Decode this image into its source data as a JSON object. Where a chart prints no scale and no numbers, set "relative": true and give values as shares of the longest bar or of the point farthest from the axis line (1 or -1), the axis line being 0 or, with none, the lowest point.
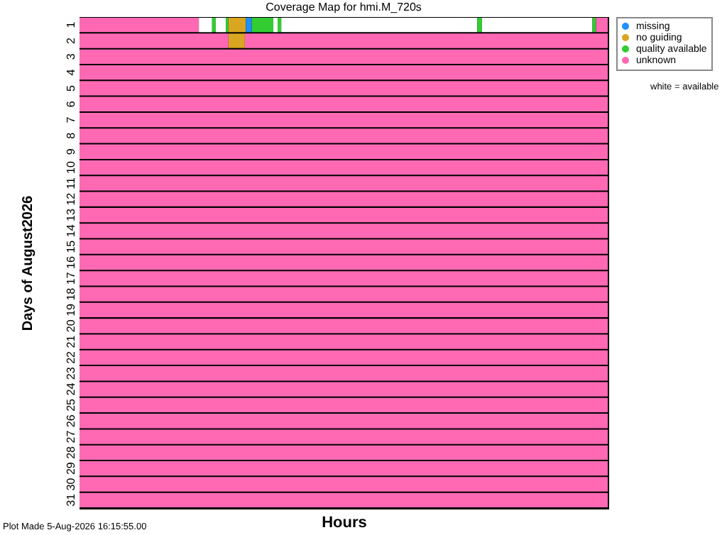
{
  "chart_data": {
    "type": "bar",
    "orientation": "horizontal",
    "stacked": true,
    "relative": true,
    "title": "Coverage Map for hmi.M_720s",
    "xlabel": "Hours",
    "ylabel": "Days of August2026",
    "legend": "top right",
    "annotations": [
      "white = available",
      "Plot Made  5-Aug-2026 16:15:55.00"
    ],
    "categories": [
      "1",
      "2",
      "3",
      "4",
      "5",
      "6",
      "7",
      "8",
      "9",
      "10",
      "11",
      "12",
      "13",
      "14",
      "15",
      "16",
      "17",
      "18",
      "19",
      "20",
      "21",
      "22",
      "23",
      "24",
      "25",
      "26",
      "27",
      "28",
      "29",
      "30",
      "31"
    ],
    "series": [
      {
        "name": "unknown",
        "color": "#ff69b4",
        "values": [
          0.226,
          0.282,
          1,
          1,
          1,
          1,
          1,
          1,
          1,
          1,
          1,
          1,
          1,
          1,
          1,
          1,
          1,
          1,
          1,
          1,
          1,
          1,
          1,
          1,
          1,
          1,
          1,
          1,
          1,
          1,
          1
        ]
      },
      {
        "color": "#ffffff",
        "values": [
          0.025,
          null,
          null,
          null,
          null,
          null,
          null,
          null,
          null,
          null,
          null,
          null,
          null,
          null,
          null,
          null,
          null,
          null,
          null,
          null,
          null,
          null,
          null,
          null,
          null,
          null,
          null,
          null,
          null,
          null,
          null
        ]
      },
      {
        "name": "quality available",
        "color": "#33cc33",
        "values": [
          0.007,
          null,
          null,
          null,
          null,
          null,
          null,
          null,
          null,
          null,
          null,
          null,
          null,
          null,
          null,
          null,
          null,
          null,
          null,
          null,
          null,
          null,
          null,
          null,
          null,
          null,
          null,
          null,
          null,
          null,
          null
        ]
      },
      {
        "color": "#ffffff",
        "values": [
          0.019,
          null,
          null,
          null,
          null,
          null,
          null,
          null,
          null,
          null,
          null,
          null,
          null,
          null,
          null,
          null,
          null,
          null,
          null,
          null,
          null,
          null,
          null,
          null,
          null,
          null,
          null,
          null,
          null,
          null,
          null
        ]
      },
      {
        "color": "#33cc33",
        "values": [
          0.005,
          null,
          null,
          null,
          null,
          null,
          null,
          null,
          null,
          null,
          null,
          null,
          null,
          null,
          null,
          null,
          null,
          null,
          null,
          null,
          null,
          null,
          null,
          null,
          null,
          null,
          null,
          null,
          null,
          null,
          null
        ]
      },
      {
        "name": "no guiding",
        "color": "#daa520",
        "values": [
          0.033,
          0.031,
          null,
          null,
          null,
          null,
          null,
          null,
          null,
          null,
          null,
          null,
          null,
          null,
          null,
          null,
          null,
          null,
          null,
          null,
          null,
          null,
          null,
          null,
          null,
          null,
          null,
          null,
          null,
          null,
          null
        ]
      },
      {
        "name": "missing",
        "color": "#1e90ff",
        "values": [
          0.011,
          null,
          null,
          null,
          null,
          null,
          null,
          null,
          null,
          null,
          null,
          null,
          null,
          null,
          null,
          null,
          null,
          null,
          null,
          null,
          null,
          null,
          null,
          null,
          null,
          null,
          null,
          null,
          null,
          null,
          null
        ]
      },
      {
        "color": "#33cc33",
        "values": [
          0.041,
          null,
          null,
          null,
          null,
          null,
          null,
          null,
          null,
          null,
          null,
          null,
          null,
          null,
          null,
          null,
          null,
          null,
          null,
          null,
          null,
          null,
          null,
          null,
          null,
          null,
          null,
          null,
          null,
          null,
          null
        ]
      },
      {
        "color": "#ffffff",
        "values": [
          0.008,
          null,
          null,
          null,
          null,
          null,
          null,
          null,
          null,
          null,
          null,
          null,
          null,
          null,
          null,
          null,
          null,
          null,
          null,
          null,
          null,
          null,
          null,
          null,
          null,
          null,
          null,
          null,
          null,
          null,
          null
        ]
      },
      {
        "color": "#33cc33",
        "values": [
          0.007,
          null,
          null,
          null,
          null,
          null,
          null,
          null,
          null,
          null,
          null,
          null,
          null,
          null,
          null,
          null,
          null,
          null,
          null,
          null,
          null,
          null,
          null,
          null,
          null,
          null,
          null,
          null,
          null,
          null,
          null
        ]
      },
      {
        "color": "#ffffff",
        "values": [
          0.371,
          null,
          null,
          null,
          null,
          null,
          null,
          null,
          null,
          null,
          null,
          null,
          null,
          null,
          null,
          null,
          null,
          null,
          null,
          null,
          null,
          null,
          null,
          null,
          null,
          null,
          null,
          null,
          null,
          null,
          null
        ]
      },
      {
        "color": "#33cc33",
        "values": [
          0.009,
          null,
          null,
          null,
          null,
          null,
          null,
          null,
          null,
          null,
          null,
          null,
          null,
          null,
          null,
          null,
          null,
          null,
          null,
          null,
          null,
          null,
          null,
          null,
          null,
          null,
          null,
          null,
          null,
          null,
          null
        ]
      },
      {
        "color": "#ffffff",
        "values": [
          0.209,
          null,
          null,
          null,
          null,
          null,
          null,
          null,
          null,
          null,
          null,
          null,
          null,
          null,
          null,
          null,
          null,
          null,
          null,
          null,
          null,
          null,
          null,
          null,
          null,
          null,
          null,
          null,
          null,
          null,
          null
        ]
      },
      {
        "color": "#33cc33",
        "values": [
          0.007,
          null,
          null,
          null,
          null,
          null,
          null,
          null,
          null,
          null,
          null,
          null,
          null,
          null,
          null,
          null,
          null,
          null,
          null,
          null,
          null,
          null,
          null,
          null,
          null,
          null,
          null,
          null,
          null,
          null,
          null
        ]
      },
      {
        "color": "#ff69b4",
        "values": [
          0.022,
          0.687,
          null,
          null,
          null,
          null,
          null,
          null,
          null,
          null,
          null,
          null,
          null,
          null,
          null,
          null,
          null,
          null,
          null,
          null,
          null,
          null,
          null,
          null,
          null,
          null,
          null,
          null,
          null,
          null,
          null
        ]
      }
    ]
  }
}
